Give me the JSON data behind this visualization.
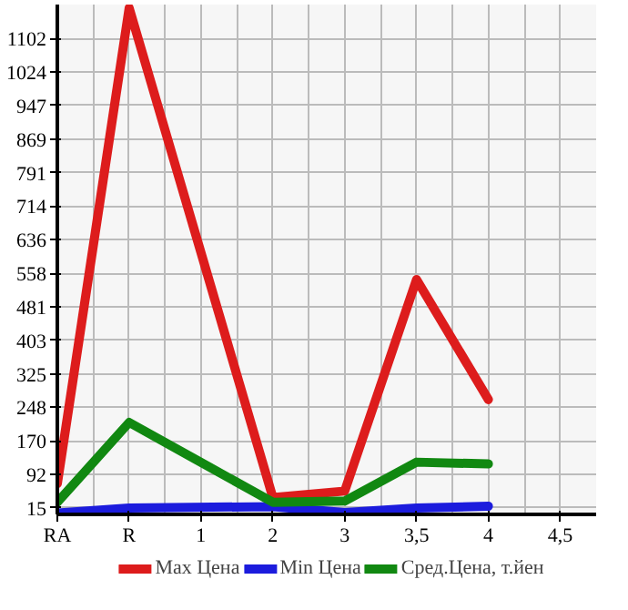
{
  "chart_data": {
    "type": "line",
    "categories": [
      "RA",
      "R",
      "1",
      "2",
      "3",
      "3,5",
      "4",
      "4,5"
    ],
    "series": [
      {
        "name": "Max Цена",
        "color": "#dd1c1c",
        "values": [
          71,
          1173,
          null,
          39,
          54,
          544,
          266,
          null
        ]
      },
      {
        "name": "Min Цена",
        "color": "#1c1cdd",
        "values": [
          3,
          15,
          null,
          18,
          4,
          15,
          19,
          null
        ]
      },
      {
        "name": "Сред.Цена, т.йен",
        "color": "#118811",
        "values": [
          28,
          213,
          null,
          28,
          31,
          121,
          117,
          null
        ]
      }
    ],
    "ylim": [
      0,
      1181
    ],
    "yticks": [
      15,
      92,
      170,
      248,
      325,
      403,
      481,
      558,
      636,
      714,
      791,
      869,
      947,
      1024,
      1102
    ],
    "grid": true,
    "legend": "bottom",
    "marker": "none",
    "line_style": "solid"
  }
}
